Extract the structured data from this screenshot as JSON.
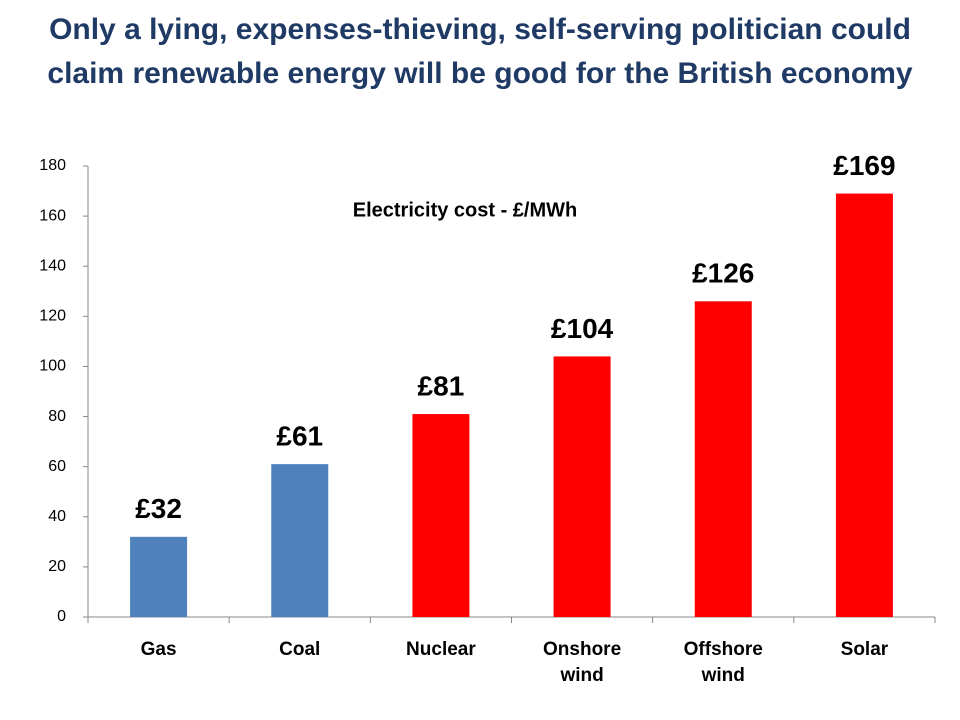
{
  "chart_data": {
    "type": "bar",
    "title": "Only a lying, expenses-thieving, self-serving politician could claim renewable energy will be good for the British economy",
    "annotation": "Electricity cost - £/MWh",
    "categories": [
      "Gas",
      "Coal",
      "Nuclear",
      "Onshore wind",
      "Offshore wind",
      "Solar"
    ],
    "values": [
      32,
      61,
      81,
      104,
      126,
      169
    ],
    "value_labels": [
      "£32",
      "£61",
      "£81",
      "£104",
      "£126",
      "£169"
    ],
    "colors": [
      "#4f81bd",
      "#4f81bd",
      "#ff0000",
      "#ff0000",
      "#ff0000",
      "#ff0000"
    ],
    "ylim": [
      0,
      180
    ],
    "yticks": [
      0,
      20,
      40,
      60,
      80,
      100,
      120,
      140,
      160,
      180
    ],
    "grid": false
  }
}
